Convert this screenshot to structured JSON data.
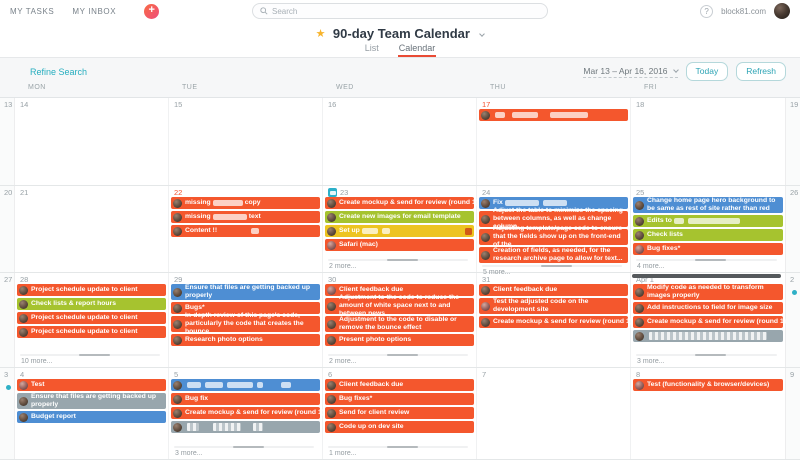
{
  "topbar": {
    "my_tasks": "MY TASKS",
    "my_inbox": "MY INBOX",
    "plus": "+",
    "search_placeholder": "Search",
    "help": "?",
    "user": "block81.com"
  },
  "header": {
    "star": "★",
    "title": "90-day Team Calendar",
    "tab_list": "List",
    "tab_calendar": "Calendar"
  },
  "toolbar": {
    "refine": "Refine Search",
    "range": "Mar 13 – Apr 16, 2016",
    "today": "Today",
    "refresh": "Refresh"
  },
  "palette": {
    "orange": "#f4572d",
    "green": "#a6c32f",
    "yellow": "#edc421",
    "blue": "#4e8ed3",
    "gray": "#98a6ad",
    "red_date": "#f4502c",
    "today_icon_teal": "#2cb0c9",
    "weekend_dot_teal": "#2fb0c6",
    "tab_underline_red": "#e94b35",
    "link_teal": "#27aebf"
  },
  "calendar": {
    "day_headers": [
      "MON",
      "TUE",
      "WED",
      "THU",
      "FRI"
    ],
    "rows": [
      {
        "h": 88,
        "left": {
          "d": "13"
        },
        "right": {
          "d": "19"
        },
        "days": [
          {
            "d": "14"
          },
          {
            "d": "15"
          },
          {
            "d": "16"
          },
          {
            "d": "17",
            "red": true,
            "tasks": [
              {
                "c": "orange",
                "segs": [
                  {
                    "r": 10
                  },
                  {
                    "r": 26,
                    "ml": 5
                  },
                  {
                    "r": 38,
                    "ml": 10
                  }
                ]
              }
            ]
          },
          {
            "d": "18"
          }
        ]
      },
      {
        "h": 87,
        "left": {
          "d": "20"
        },
        "right": {
          "d": "26"
        },
        "days": [
          {
            "d": "21"
          },
          {
            "d": "22",
            "red": true,
            "tasks": [
              {
                "c": "orange",
                "segs": [
                  {
                    "t": "missing"
                  },
                  {
                    "r": 30
                  },
                  {
                    "t": "copy"
                  }
                ]
              },
              {
                "c": "orange",
                "segs": [
                  {
                    "t": "missing"
                  },
                  {
                    "r": 34
                  },
                  {
                    "t": "text"
                  }
                ]
              },
              {
                "c": "orange",
                "segs": [
                  {
                    "t": "Content !!"
                  },
                  {
                    "r": 8,
                    "ml": 34
                  }
                ]
              }
            ]
          },
          {
            "d": "23",
            "today": true,
            "more": "2 more...",
            "sb": true,
            "tasks": [
              {
                "c": "orange",
                "segs": [
                  {
                    "t": "Create mockup & send for review (round 1)"
                  }
                ]
              },
              {
                "c": "green",
                "segs": [
                  {
                    "t": "Create new images for email template"
                  }
                ]
              },
              {
                "c": "yellow",
                "icon_right": true,
                "segs": [
                  {
                    "t": "Set up"
                  },
                  {
                    "r": 16
                  },
                  {
                    "r": 8
                  }
                ]
              },
              {
                "c": "orange",
                "av": "p",
                "segs": [
                  {
                    "t": "Safari (mac)"
                  }
                ]
              }
            ]
          },
          {
            "d": "24",
            "more": "5 more...",
            "sb": true,
            "tasks": [
              {
                "c": "blue",
                "segs": [
                  {
                    "t": "Fix"
                  },
                  {
                    "r": 34
                  },
                  {
                    "r": 24
                  }
                ]
              },
              {
                "c": "orange",
                "lines": 2,
                "segs": [
                  {
                    "t": "Adjust the table to minimize the spacing between columns, as well as change column..."
                  }
                ]
              },
              {
                "c": "orange",
                "lines": 2,
                "segs": [
                  {
                    "t": "Adjusting template/page code to ensure that the fields show up on the front-end of the..."
                  }
                ]
              },
              {
                "c": "orange",
                "lines": 2,
                "segs": [
                  {
                    "t": "Creation of fields, as needed, for the research archive page to allow for text..."
                  }
                ]
              }
            ]
          },
          {
            "d": "25",
            "more": "4 more...",
            "sb": true,
            "tasks": [
              {
                "c": "blue",
                "lines": 2,
                "segs": [
                  {
                    "t": "Change home page hero background to be same as rest of site rather than red"
                  }
                ]
              },
              {
                "c": "green",
                "segs": [
                  {
                    "t": "Edits to"
                  },
                  {
                    "r": 10
                  },
                  {
                    "r": 52
                  }
                ]
              },
              {
                "c": "green",
                "segs": [
                  {
                    "t": "Check lists"
                  }
                ]
              },
              {
                "c": "orange",
                "av": "p",
                "segs": [
                  {
                    "t": "Bug fixes*"
                  }
                ]
              }
            ]
          }
        ]
      },
      {
        "h": 95,
        "left": {
          "d": "27"
        },
        "right": {
          "d": "2",
          "dot": true
        },
        "days": [
          {
            "d": "28",
            "more": "10 more...",
            "sb": true,
            "tasks": [
              {
                "c": "orange",
                "segs": [
                  {
                    "t": "Project schedule update to client"
                  }
                ]
              },
              {
                "c": "green",
                "segs": [
                  {
                    "t": "Check lists & report hours"
                  }
                ]
              },
              {
                "c": "orange",
                "segs": [
                  {
                    "t": "Project schedule update to client"
                  }
                ]
              },
              {
                "c": "orange",
                "segs": [
                  {
                    "t": "Project schedule update to client"
                  }
                ]
              }
            ]
          },
          {
            "d": "29",
            "tasks": [
              {
                "c": "blue",
                "lines": 2,
                "segs": [
                  {
                    "t": "Ensure that files are getting backed up properly"
                  }
                ]
              },
              {
                "c": "orange",
                "segs": [
                  {
                    "t": "Bugs*"
                  }
                ]
              },
              {
                "c": "orange",
                "lines": 2,
                "segs": [
                  {
                    "t": "In-depth review of this page's code, particularly the code that creates the bounce..."
                  }
                ]
              },
              {
                "c": "orange",
                "segs": [
                  {
                    "t": "Research photo options"
                  }
                ]
              }
            ]
          },
          {
            "d": "30",
            "more": "2 more...",
            "sb": true,
            "tasks": [
              {
                "c": "orange",
                "av": "p",
                "segs": [
                  {
                    "t": "Client feedback due"
                  }
                ]
              },
              {
                "c": "orange",
                "lines": 2,
                "segs": [
                  {
                    "t": "Adjustment to the code to reduce the amount of white space next to and between news..."
                  }
                ]
              },
              {
                "c": "orange",
                "lines": 2,
                "segs": [
                  {
                    "t": "Adjustment to the code to disable or remove the bounce effect"
                  }
                ]
              },
              {
                "c": "orange",
                "segs": [
                  {
                    "t": "Present photo options"
                  }
                ]
              }
            ]
          },
          {
            "d": "31",
            "tasks": [
              {
                "c": "orange",
                "segs": [
                  {
                    "t": "Client feedback due"
                  }
                ]
              },
              {
                "c": "orange",
                "av": "p",
                "lines": 2,
                "segs": [
                  {
                    "t": "Test the adjusted code on the development site"
                  }
                ]
              },
              {
                "c": "orange",
                "segs": [
                  {
                    "t": "Create mockup & send for review (round 1)"
                  }
                ]
              }
            ]
          },
          {
            "d": "Apr 1",
            "top_sb": true,
            "more": "3 more...",
            "sb": true,
            "tasks": [
              {
                "c": "orange",
                "lines": 2,
                "segs": [
                  {
                    "t": "Modify code as needed to transform images properly"
                  }
                ]
              },
              {
                "c": "orange",
                "segs": [
                  {
                    "t": "Add instructions to field for image size"
                  }
                ]
              },
              {
                "c": "orange",
                "segs": [
                  {
                    "t": "Create mockup & send for review (round 1)"
                  }
                ]
              },
              {
                "c": "gray",
                "segs": [
                  {
                    "p": 118
                  }
                ]
              }
            ]
          }
        ]
      },
      {
        "h": 92,
        "left": {
          "d": "3",
          "dot": true
        },
        "right": {
          "d": "9"
        },
        "days": [
          {
            "d": "4",
            "tasks": [
              {
                "c": "orange",
                "av": "p",
                "segs": [
                  {
                    "t": "Test"
                  }
                ]
              },
              {
                "c": "gray",
                "lines": 2,
                "segs": [
                  {
                    "t": "Ensure that files are getting backed up properly"
                  }
                ]
              },
              {
                "c": "blue",
                "segs": [
                  {
                    "t": "Budget report"
                  }
                ]
              }
            ]
          },
          {
            "d": "5",
            "more": "3 more...",
            "sb": true,
            "tasks": [
              {
                "c": "blue",
                "segs": [
                  {
                    "r": 14
                  },
                  {
                    "r": 18
                  },
                  {
                    "r": 26
                  },
                  {
                    "r": 6
                  },
                  {
                    "r": 10,
                    "ml": 16
                  }
                ]
              },
              {
                "c": "orange",
                "segs": [
                  {
                    "t": "Bug fix"
                  }
                ]
              },
              {
                "c": "orange",
                "segs": [
                  {
                    "t": "Create mockup & send for review (round 1)"
                  }
                ]
              },
              {
                "c": "gray",
                "segs": [
                  {
                    "p": 12
                  },
                  {
                    "p": 28,
                    "ml": 12
                  },
                  {
                    "p": 10,
                    "ml": 10
                  }
                ]
              }
            ]
          },
          {
            "d": "6",
            "more": "1 more...",
            "sb": true,
            "tasks": [
              {
                "c": "orange",
                "segs": [
                  {
                    "t": "Client feedback due"
                  }
                ]
              },
              {
                "c": "orange",
                "segs": [
                  {
                    "t": "Bug fixes*"
                  }
                ]
              },
              {
                "c": "orange",
                "segs": [
                  {
                    "t": "Send for client review"
                  }
                ]
              },
              {
                "c": "orange",
                "segs": [
                  {
                    "t": "Code up on dev site"
                  }
                ]
              }
            ]
          },
          {
            "d": "7"
          },
          {
            "d": "8",
            "tasks": [
              {
                "c": "orange",
                "av": "p",
                "segs": [
                  {
                    "t": "Test (functionality & browser/devices)"
                  }
                ]
              }
            ]
          }
        ]
      }
    ]
  }
}
